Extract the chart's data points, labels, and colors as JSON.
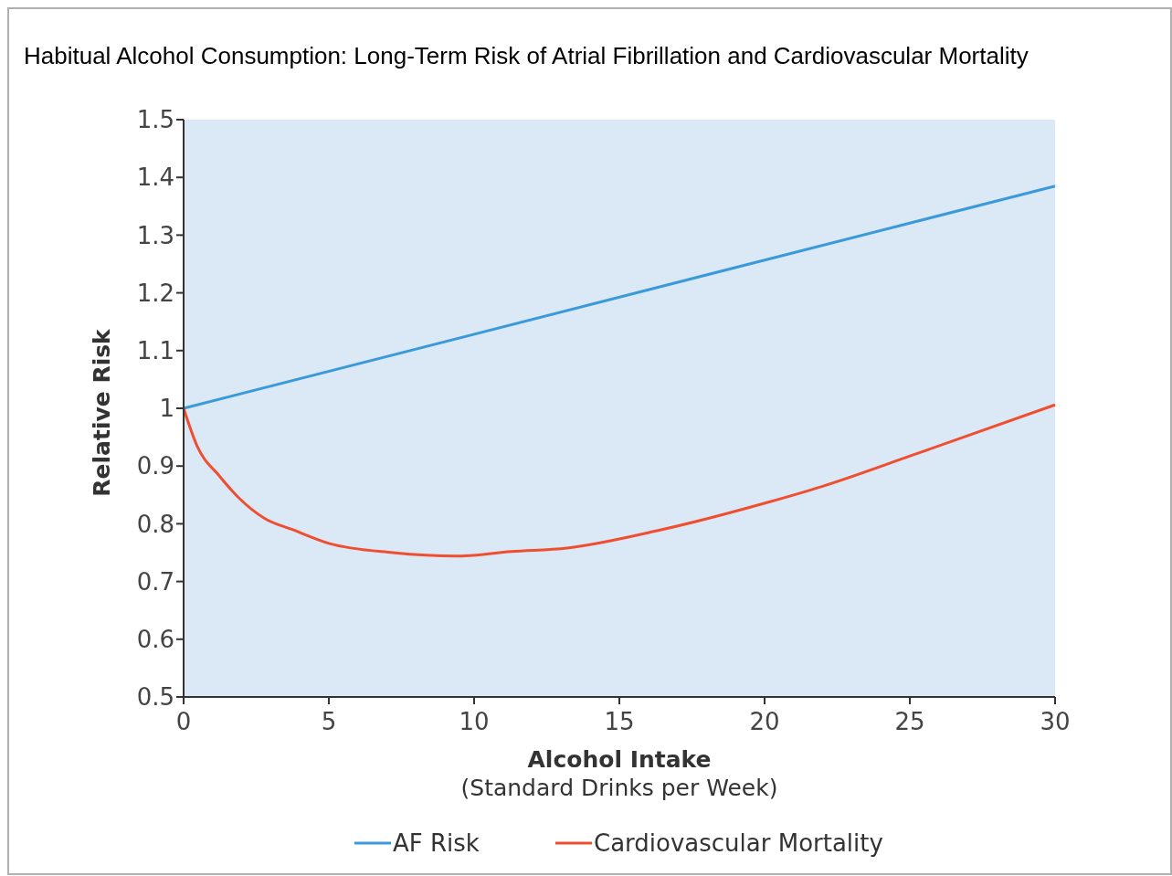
{
  "chart_data": {
    "type": "line",
    "title": "Habitual Alcohol Consumption: Long-Term Risk of Atrial Fibrillation and Cardiovascular Mortality",
    "xlabel": "Alcohol Intake\n(Standard Drinks per Week)",
    "ylabel": "Relative Risk",
    "xlim": [
      0,
      30
    ],
    "xticks": [
      0,
      5,
      10,
      15,
      20,
      25,
      30
    ],
    "ylim": [
      0.5,
      1.5
    ],
    "yticks": [
      0.5,
      0.6,
      0.7,
      0.8,
      0.9,
      1,
      1.1,
      1.2,
      1.3,
      1.4,
      1.5
    ],
    "grid": false,
    "legend": "bottom",
    "marker": "none",
    "line_style": "solid",
    "series": [
      {
        "name": "AF Risk",
        "color": "#3a9ad9",
        "x": [
          0,
          30
        ],
        "values": [
          1.0,
          1.385
        ]
      },
      {
        "name": "Cardiovascular Mortality",
        "color": "#f04e30",
        "x": [
          0,
          0.47,
          1.23,
          1.9,
          2.8,
          3.74,
          5,
          7.2,
          9.4,
          11.3,
          13.2,
          16.3,
          20.1,
          22,
          25.1,
          30
        ],
        "values": [
          1.0,
          0.934,
          0.883,
          0.845,
          0.809,
          0.79,
          0.766,
          0.75,
          0.744,
          0.752,
          0.758,
          0.788,
          0.837,
          0.865,
          0.919,
          1.006
        ]
      }
    ]
  }
}
